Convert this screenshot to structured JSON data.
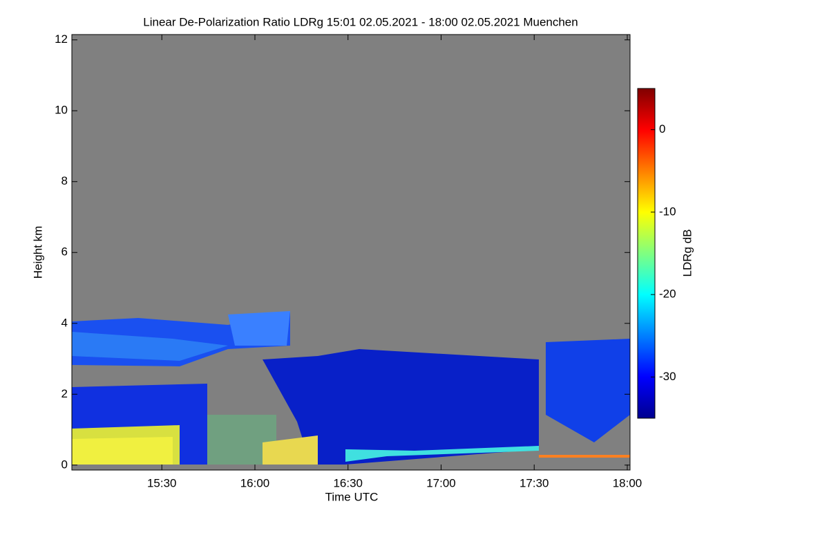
{
  "chart_data": {
    "type": "heatmap",
    "title": "Linear De-Polarization Ratio LDRg   15:01 02.05.2021 - 18:00 02.05.2021 Muenchen",
    "xlabel": "Time UTC",
    "ylabel": "Height km",
    "xlim": [
      901,
      1080
    ],
    "xticks": [
      {
        "value": 930,
        "label": "15:30"
      },
      {
        "value": 960,
        "label": "16:00"
      },
      {
        "value": 990,
        "label": "16:30"
      },
      {
        "value": 1020,
        "label": "17:00"
      },
      {
        "value": 1050,
        "label": "17:30"
      },
      {
        "value": 1080,
        "label": "18:00"
      }
    ],
    "ylim": [
      -0.14,
      12.15
    ],
    "yticks": [
      0,
      2,
      4,
      6,
      8,
      10,
      12
    ],
    "colorbar": {
      "label": "LDRg dB",
      "clim": [
        -35,
        5
      ],
      "ticks": [
        0,
        -10,
        -20,
        -30
      ],
      "colormap": "jet"
    },
    "background": "#808080"
  }
}
